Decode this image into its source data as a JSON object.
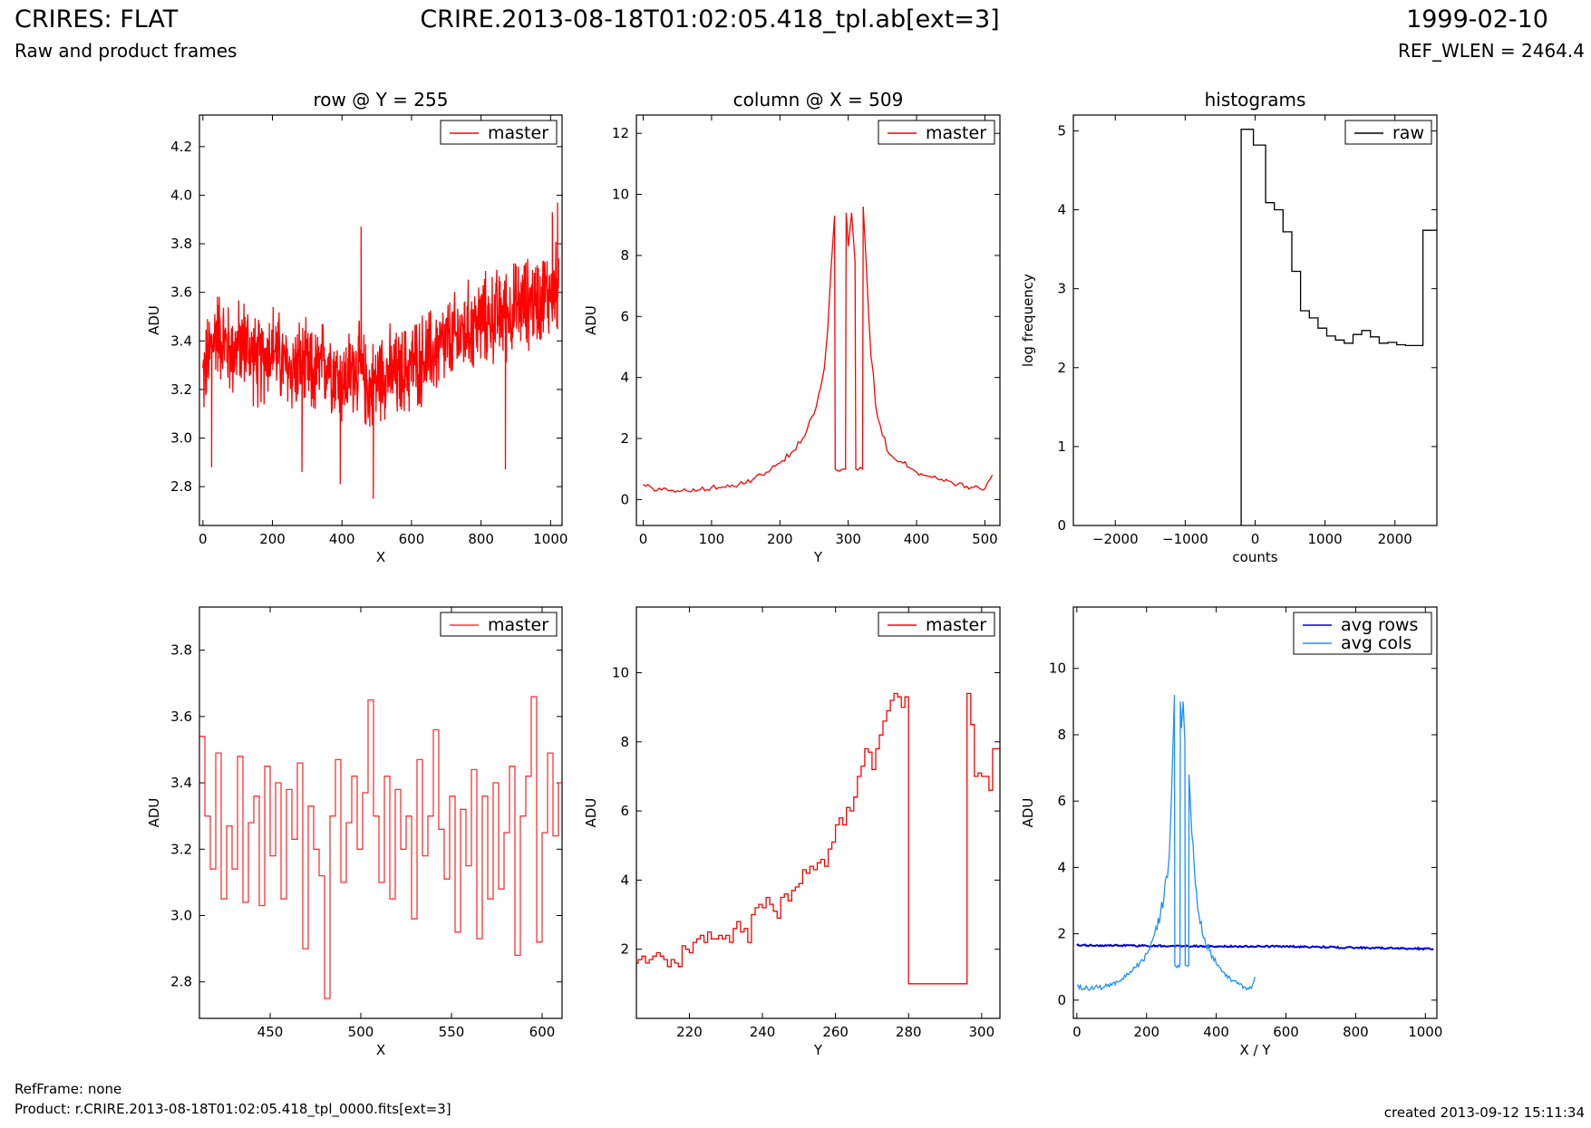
{
  "header": {
    "title": "CRIRES: FLAT",
    "subtitle": "Raw and product frames",
    "file": "CRIRE.2013-08-18T01:02:05.418_tpl.ab[ext=3]",
    "date": "1999-02-10",
    "ref_wlen": "REF_WLEN = 2464.4"
  },
  "footer": {
    "refframe": "RefFrame: none",
    "product": "Product: r.CRIRE.2013-08-18T01:02:05.418_tpl_0000.fits[ext=3]",
    "created": "created 2013-09-12 15:11:34"
  },
  "colors": {
    "master": "#ff0000",
    "master_zoom": "#ff3333",
    "raw": "#000000",
    "avg_rows": "#0000dd",
    "avg_cols": "#1e90ff"
  },
  "chart_data": [
    {
      "id": "row",
      "type": "line",
      "title": "row @ Y = 255",
      "xlabel": "X",
      "ylabel": "ADU",
      "xlim": [
        -10,
        1033
      ],
      "ylim": [
        2.64,
        4.33
      ],
      "xticks": [
        0,
        200,
        400,
        600,
        800,
        1000
      ],
      "yticks": [
        2.8,
        3.0,
        3.2,
        3.4,
        3.6,
        3.8,
        4.0,
        4.2
      ],
      "ytick_format": 1,
      "legend": "top-right",
      "series": [
        {
          "name": "master",
          "color": "#ff0000",
          "x": [
            0,
            40,
            80,
            120,
            160,
            200,
            240,
            280,
            320,
            360,
            400,
            440,
            480,
            520,
            560,
            600,
            640,
            680,
            720,
            760,
            800,
            840,
            880,
            920,
            960,
            1000,
            1023
          ],
          "values": [
            3.25,
            3.45,
            3.35,
            3.4,
            3.3,
            3.38,
            3.28,
            3.3,
            3.25,
            3.33,
            3.22,
            3.3,
            3.2,
            3.28,
            3.25,
            3.3,
            3.33,
            3.37,
            3.4,
            3.45,
            3.48,
            3.5,
            3.52,
            3.55,
            3.57,
            3.6,
            3.62
          ],
          "spread": 0.19,
          "points": 1024,
          "dips": [
            [
              25,
              2.88
            ],
            [
              285,
              2.86
            ],
            [
              395,
              2.81
            ],
            [
              490,
              2.75
            ],
            [
              870,
              2.87
            ]
          ],
          "peaks": [
            [
              1020,
              3.97
            ],
            [
              1005,
              3.93
            ],
            [
              455,
              3.87
            ]
          ]
        }
      ]
    },
    {
      "id": "column",
      "type": "line",
      "title": "column @ X = 509",
      "xlabel": "Y",
      "ylabel": "ADU",
      "xlim": [
        -10,
        522
      ],
      "ylim": [
        -0.85,
        12.6
      ],
      "xticks": [
        0,
        100,
        200,
        300,
        400,
        500
      ],
      "yticks": [
        0,
        2,
        4,
        6,
        8,
        10,
        12
      ],
      "ytick_format": 0,
      "legend": "top-right",
      "series": [
        {
          "name": "master",
          "color": "#ff0000",
          "x": [
            0,
            20,
            40,
            60,
            80,
            100,
            120,
            140,
            160,
            180,
            200,
            220,
            240,
            250,
            260,
            265,
            270,
            275,
            280,
            281,
            296,
            297,
            300,
            305,
            310,
            311,
            321,
            322,
            330,
            340,
            350,
            360,
            380,
            400,
            420,
            440,
            460,
            480,
            500,
            511
          ],
          "values": [
            0.5,
            0.3,
            0.3,
            0.35,
            0.3,
            0.4,
            0.4,
            0.5,
            0.65,
            0.9,
            1.2,
            1.6,
            2.3,
            2.8,
            3.7,
            4.3,
            5.6,
            7.6,
            9.3,
            1.0,
            1.0,
            9.4,
            8.3,
            9.4,
            7.8,
            1.0,
            1.0,
            9.6,
            6.0,
            3.1,
            2.1,
            1.5,
            1.2,
            0.9,
            0.75,
            0.6,
            0.5,
            0.4,
            0.35,
            0.8
          ]
        }
      ]
    },
    {
      "id": "hist",
      "type": "histogram",
      "title": "histograms",
      "xlabel": "counts",
      "ylabel": "log frequency",
      "xlim": [
        -2600,
        2600
      ],
      "ylim": [
        0,
        5.2
      ],
      "xticks": [
        -2000,
        -1000,
        0,
        1000,
        2000
      ],
      "yticks": [
        0,
        1,
        2,
        3,
        4,
        5
      ],
      "ytick_format": 0,
      "legend": "top-right",
      "series": [
        {
          "name": "raw",
          "color": "#000000",
          "edges": [
            -200,
            -25,
            150,
            275,
            400,
            525,
            650,
            775,
            900,
            1025,
            1150,
            1275,
            1400,
            1525,
            1650,
            1775,
            1900,
            2025,
            2150,
            2275,
            2400,
            2600
          ],
          "values": [
            5.02,
            4.82,
            4.09,
            4.0,
            3.72,
            3.22,
            2.72,
            2.63,
            2.5,
            2.4,
            2.35,
            2.31,
            2.42,
            2.47,
            2.39,
            2.31,
            2.32,
            2.29,
            2.28,
            2.28,
            3.74
          ]
        }
      ]
    },
    {
      "id": "row-zoom",
      "type": "line",
      "title": "",
      "xlabel": "X",
      "ylabel": "ADU",
      "xlim": [
        411,
        611
      ],
      "ylim": [
        2.69,
        3.93
      ],
      "xticks": [
        450,
        500,
        550,
        600
      ],
      "yticks": [
        2.8,
        3.0,
        3.2,
        3.4,
        3.6,
        3.8
      ],
      "ytick_format": 1,
      "legend": "top-right",
      "series": [
        {
          "name": "master",
          "color": "#ff3333",
          "step": true,
          "x": [
            411,
            414,
            417,
            420,
            423,
            426,
            429,
            432,
            435,
            438,
            441,
            444,
            447,
            450,
            453,
            456,
            459,
            462,
            465,
            468,
            471,
            474,
            477,
            480,
            483,
            486,
            489,
            492,
            495,
            498,
            501,
            504,
            507,
            510,
            513,
            516,
            519,
            522,
            525,
            528,
            531,
            534,
            537,
            540,
            543,
            546,
            549,
            552,
            555,
            558,
            561,
            564,
            567,
            570,
            573,
            576,
            579,
            582,
            585,
            588,
            591,
            594,
            597,
            600,
            603,
            606,
            609
          ],
          "values": [
            3.54,
            3.3,
            3.14,
            3.49,
            3.05,
            3.27,
            3.14,
            3.48,
            3.04,
            3.28,
            3.36,
            3.03,
            3.45,
            3.18,
            3.4,
            3.05,
            3.38,
            3.23,
            3.46,
            2.9,
            3.33,
            3.2,
            3.12,
            2.75,
            3.3,
            3.47,
            3.1,
            3.28,
            3.42,
            3.2,
            3.37,
            3.65,
            3.3,
            3.1,
            3.42,
            3.05,
            3.38,
            3.2,
            3.3,
            2.99,
            3.47,
            3.18,
            3.3,
            3.56,
            3.26,
            3.11,
            3.36,
            2.95,
            3.32,
            3.15,
            3.44,
            2.93,
            3.36,
            3.05,
            3.4,
            3.08,
            3.25,
            3.45,
            2.88,
            3.3,
            3.42,
            3.66,
            2.92,
            3.25,
            3.49,
            3.24,
            3.4
          ]
        }
      ]
    },
    {
      "id": "column-zoom",
      "type": "line",
      "title": "",
      "xlabel": "Y",
      "ylabel": "ADU",
      "xlim": [
        205.5,
        305
      ],
      "ylim": [
        0,
        11.9
      ],
      "xticks": [
        220,
        240,
        260,
        280,
        300
      ],
      "yticks": [
        2,
        4,
        6,
        8,
        10
      ],
      "ytick_format": 0,
      "legend": "top-right",
      "series": [
        {
          "name": "master",
          "color": "#ff0000",
          "step": true,
          "x": [
            205.5,
            206,
            207,
            208,
            209,
            210,
            211,
            212,
            213,
            214,
            215,
            216,
            217,
            218,
            219,
            220,
            221,
            222,
            223,
            224,
            225,
            226,
            227,
            228,
            229,
            230,
            231,
            232,
            233,
            234,
            235,
            236,
            237,
            238,
            239,
            240,
            241,
            242,
            243,
            244,
            245,
            246,
            247,
            248,
            249,
            250,
            251,
            252,
            253,
            254,
            255,
            256,
            257,
            258,
            259,
            260,
            261,
            262,
            263,
            264,
            265,
            266,
            267,
            268,
            269,
            270,
            271,
            272,
            273,
            274,
            275,
            276,
            277,
            278,
            279,
            280,
            296,
            297,
            298,
            299,
            300,
            301,
            302,
            303,
            304,
            305
          ],
          "values": [
            1.6,
            1.7,
            1.8,
            1.6,
            1.7,
            1.8,
            1.9,
            1.8,
            1.7,
            1.5,
            1.7,
            1.6,
            1.5,
            2.1,
            2.0,
            1.9,
            2.2,
            2.3,
            2.4,
            2.2,
            2.5,
            2.3,
            2.3,
            2.4,
            2.3,
            2.4,
            2.2,
            2.6,
            2.8,
            2.5,
            2.6,
            2.2,
            3.0,
            3.2,
            3.3,
            3.2,
            3.5,
            3.3,
            3.1,
            2.9,
            3.5,
            3.6,
            3.4,
            3.7,
            3.8,
            3.9,
            4.3,
            4.2,
            4.4,
            4.3,
            4.5,
            4.6,
            4.4,
            4.9,
            5.1,
            5.6,
            5.8,
            5.6,
            6.1,
            6.0,
            6.4,
            7.0,
            7.3,
            7.8,
            7.7,
            7.2,
            7.8,
            8.2,
            8.6,
            8.9,
            9.2,
            9.4,
            9.3,
            9.0,
            9.3,
            1.0,
            9.4,
            8.5,
            7.0,
            7.1,
            7.0,
            7.0,
            6.6,
            7.8,
            7.8,
            7.8
          ]
        }
      ]
    },
    {
      "id": "avg",
      "type": "line",
      "title": "",
      "xlabel": "X / Y",
      "ylabel": "ADU",
      "xlim": [
        -10,
        1033
      ],
      "ylim": [
        -0.55,
        11.85
      ],
      "xticks": [
        0,
        200,
        400,
        600,
        800,
        1000
      ],
      "yticks": [
        0,
        2,
        4,
        6,
        8,
        10
      ],
      "ytick_format": 0,
      "legend": "top-right",
      "series": [
        {
          "name": "avg rows",
          "color": "#0000dd",
          "x": [
            0,
            200,
            400,
            600,
            800,
            1000,
            1023
          ],
          "values": [
            1.65,
            1.64,
            1.62,
            1.62,
            1.58,
            1.55,
            1.55
          ]
        },
        {
          "name": "avg cols",
          "color": "#1e90ff",
          "x": [
            0,
            20,
            40,
            60,
            80,
            100,
            120,
            140,
            160,
            180,
            200,
            220,
            240,
            250,
            260,
            265,
            270,
            275,
            280,
            281,
            296,
            297,
            300,
            305,
            310,
            311,
            321,
            322,
            330,
            340,
            350,
            360,
            380,
            400,
            420,
            440,
            460,
            480,
            500,
            511
          ],
          "values": [
            0.45,
            0.35,
            0.35,
            0.38,
            0.4,
            0.45,
            0.55,
            0.7,
            0.9,
            1.1,
            1.4,
            1.9,
            2.6,
            3.1,
            3.7,
            4.3,
            5.7,
            7.4,
            9.2,
            1.05,
            1.05,
            9.0,
            8.2,
            9.0,
            7.8,
            1.05,
            1.05,
            6.8,
            5.0,
            3.5,
            2.6,
            2.0,
            1.5,
            1.1,
            0.85,
            0.65,
            0.5,
            0.4,
            0.35,
            0.7
          ]
        }
      ]
    }
  ]
}
